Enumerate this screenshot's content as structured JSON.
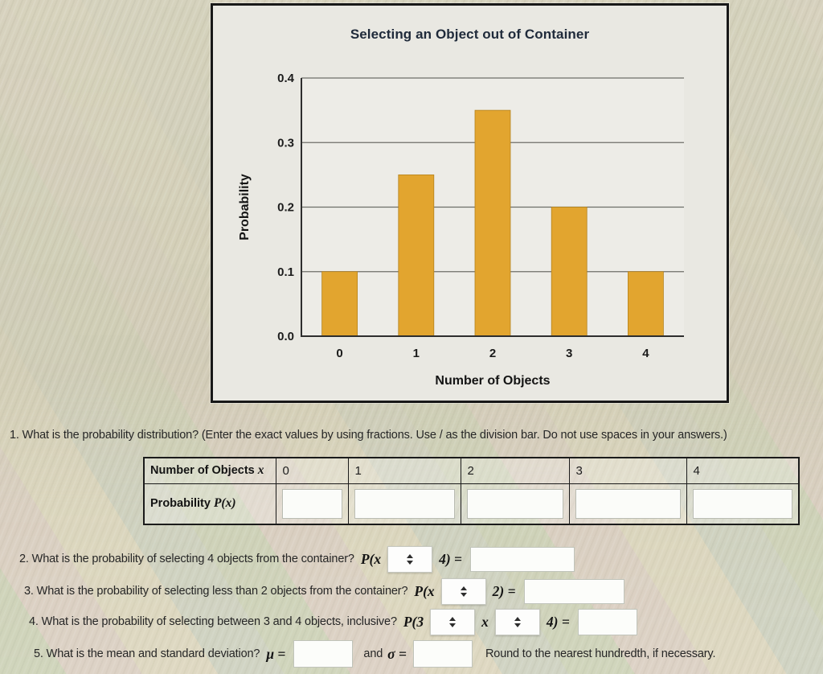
{
  "chart_data": {
    "type": "bar",
    "title": "Selecting an Object out of Container",
    "xlabel": "Number of Objects",
    "ylabel": "Probability",
    "categories": [
      "0",
      "1",
      "2",
      "3",
      "4"
    ],
    "values": [
      0.1,
      0.25,
      0.35,
      0.2,
      0.1
    ],
    "ylim": [
      0,
      0.4
    ],
    "yticks": [
      0,
      0.1,
      0.2,
      0.3,
      0.4
    ],
    "grid": true,
    "legend": "none",
    "bar_color": "#E2A52F"
  },
  "questions": {
    "q1": {
      "text": "1. What is the probability distribution? (Enter the exact values by using fractions. Use / as the division bar. Do not use spaces in your answers.)",
      "table": {
        "header_label": "Number of Objects",
        "header_var": "x",
        "x_values": [
          "0",
          "1",
          "2",
          "3",
          "4"
        ],
        "prob_label": "Probability",
        "prob_var": "P(x)",
        "prob_inputs": [
          "",
          "",
          "",
          "",
          ""
        ]
      }
    },
    "q2": {
      "text": "2. What is the probability of selecting 4 objects from the container?",
      "math_open": "P(x",
      "select_value": "",
      "math_close": "4) =",
      "input_value": ""
    },
    "q3": {
      "text": "3. What is the probability of selecting less than 2 objects from the container?",
      "math_open": "P(x",
      "select_value": "",
      "math_close": "2) =",
      "input_value": ""
    },
    "q4": {
      "text": "4. What is the probability of selecting between 3 and 4 objects, inclusive?",
      "math_open": "P(3",
      "select1_value": "",
      "math_var": "x",
      "select2_value": "",
      "math_close": "4) =",
      "input_value": ""
    },
    "q5": {
      "text": "5. What is the mean and standard deviation?",
      "mu_label": "μ =",
      "mu_value": "",
      "and_label": "and",
      "sigma_label": "σ =",
      "sigma_value": "",
      "note": "Round to the nearest hundredth, if necessary."
    }
  }
}
